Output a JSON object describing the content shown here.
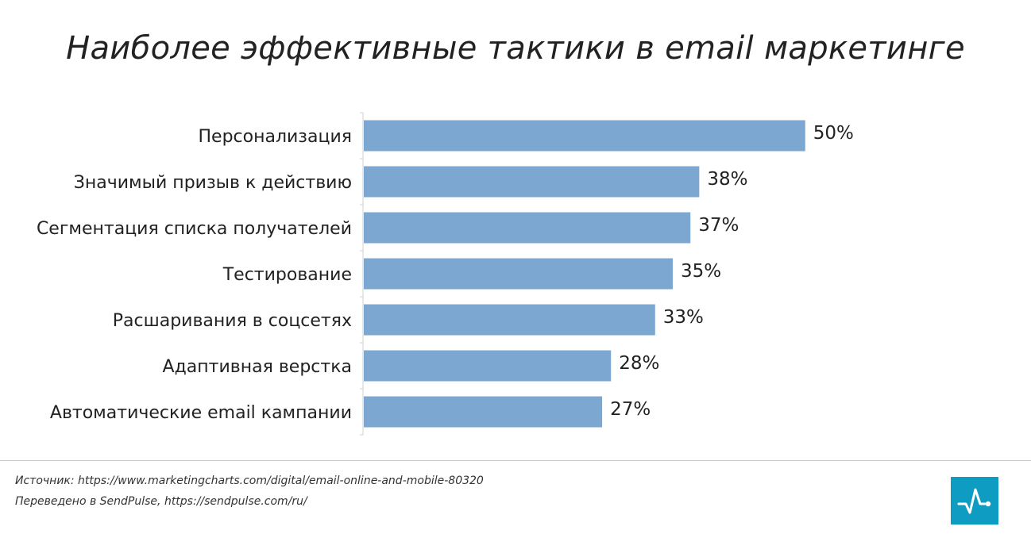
{
  "colors": {
    "bar": "#7BA7D0",
    "axis": "#d0d0d0",
    "logo_bg": "#0E9CC2"
  },
  "footer": {
    "source": "Источник: https://www.marketingcharts.com/digital/email-online-and-mobile-80320",
    "credit": "Переведено в SendPulse, https://sendpulse.com/ru/"
  },
  "logo": {
    "icon": "sendpulse-pulse-icon"
  },
  "chart_data": {
    "type": "bar",
    "orientation": "horizontal",
    "title": "Наиболее эффективные тактики в email маркетинге",
    "categories": [
      "Персонализация",
      "Значимый призыв к действию",
      "Сегментация списка получателей",
      "Тестирование",
      "Расшаривания в соцсетях",
      "Адаптивная верстка",
      "Автоматические email кампании"
    ],
    "values": [
      50,
      38,
      37,
      35,
      33,
      28,
      27
    ],
    "value_labels": [
      "50%",
      "38%",
      "37%",
      "35%",
      "33%",
      "28%",
      "27%"
    ],
    "unit": "%",
    "xlim": [
      0,
      70
    ],
    "grid": false,
    "legend": "none"
  }
}
